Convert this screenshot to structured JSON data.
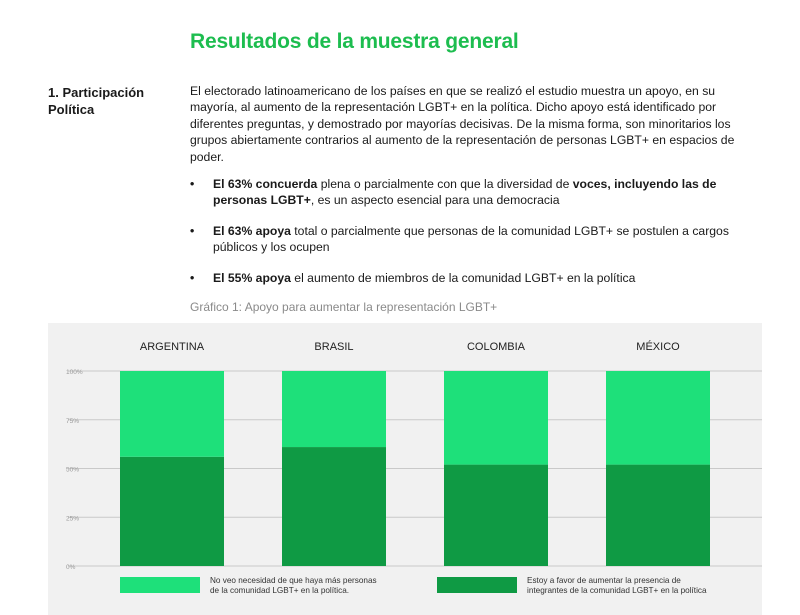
{
  "heading": "Resultados de la muestra general",
  "section": {
    "label_line1": "1. Participación",
    "label_line2": "Política"
  },
  "intro": "El electorado latinoamericano de los países en que se realizó el estudio muestra un apoyo, en su mayoría, al aumento de la representación LGBT+ en la política. Dicho apoyo está identificado por diferentes preguntas, y demostrado por mayorías decisivas. De la misma forma, son minoritarios los grupos abiertamente contrarios al aumento de la representación de personas LGBT+ en espacios de poder.",
  "bullets": [
    {
      "bold1": "El 63% concuerda",
      "text1": " plena o parcialmente con que la diversidad de ",
      "bold2": "voces, incluyendo las de personas LGBT+",
      "text2": ", es un aspecto esencial para una democracia"
    },
    {
      "bold1": "El 63% apoya",
      "text1": " total o parcialmente que personas de la comunidad LGBT+ se postulen a cargos públicos y los ocupen"
    },
    {
      "bold1": "El 55% apoya",
      "text1": " el aumento de miembros de la comunidad LGBT+ en la política"
    }
  ],
  "bullet_symbol": "•",
  "chart_caption": "Gráfico 1: Apoyo para aumentar la representación LGBT+",
  "chart_data": {
    "type": "bar",
    "stacked": true,
    "title": "Gráfico 1: Apoyo para aumentar la representación LGBT+",
    "categories": [
      "ARGENTINA",
      "BRASIL",
      "COLOMBIA",
      "MÉXICO"
    ],
    "series": [
      {
        "name": "Estoy a favor de aumentar la presencia de integrantes de la comunidad LGBT+ en la política",
        "legend_line1": "Estoy a favor de aumentar la presencia de",
        "legend_line2": "integrantes de la comunidad LGBT+ en la política",
        "color": "#0f9a44",
        "values": [
          56,
          61,
          52,
          52
        ]
      },
      {
        "name": "No veo necesidad de que haya más personas de la comunidad LGBT+ en la política.",
        "legend_line1": "No veo necesidad de que haya más personas",
        "legend_line2": "de la comunidad LGBT+ en la política.",
        "color": "#1ee07a",
        "values": [
          44,
          39,
          48,
          48
        ]
      }
    ],
    "yticks": [
      "100%",
      "75%",
      "50%",
      "25%",
      "0%"
    ],
    "ylim": [
      0,
      100
    ],
    "grid": true,
    "legend_position": "bottom"
  }
}
